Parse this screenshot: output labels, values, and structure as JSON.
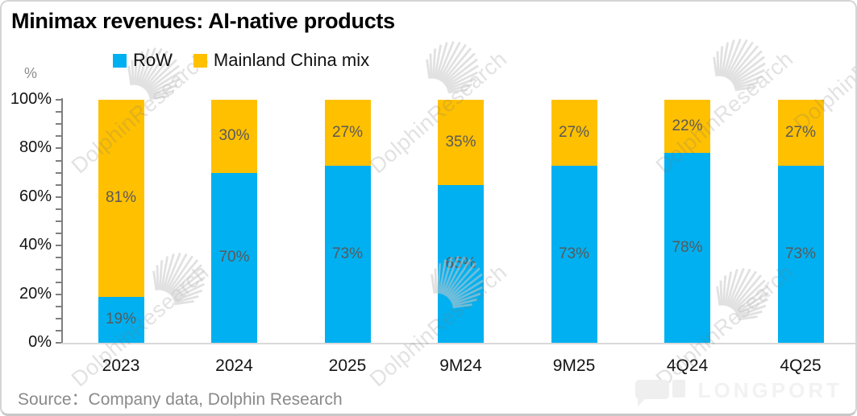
{
  "title": "Minimax revenues: AI-native products",
  "chart_data": {
    "type": "bar",
    "stacked": true,
    "title": "Minimax revenues: AI-native products",
    "categories": [
      "2023",
      "2024",
      "2025",
      "9M24",
      "9M25",
      "4Q24",
      "4Q25"
    ],
    "series": [
      {
        "name": "RoW",
        "color": "#00b0f0",
        "values": [
          19,
          70,
          73,
          65,
          73,
          78,
          73
        ]
      },
      {
        "name": "Mainland China mix",
        "color": "#ffc000",
        "values": [
          81,
          30,
          27,
          35,
          27,
          22,
          27
        ]
      }
    ],
    "xlabel": "",
    "ylabel": "",
    "y_axis_unit": "%",
    "ylim": [
      0,
      100
    ],
    "yticks": [
      "0%",
      "20%",
      "40%",
      "60%",
      "80%",
      "100%"
    ],
    "minor_tick_step_pct": 5,
    "grid": false,
    "legend_position": "top",
    "data_label_suffix": "%",
    "label_color": "#595959"
  },
  "footer": {
    "source": "Source：Company data, Dolphin Research",
    "logo_text": "LONGPORT"
  },
  "watermark": {
    "text": "DolphinResearch"
  }
}
